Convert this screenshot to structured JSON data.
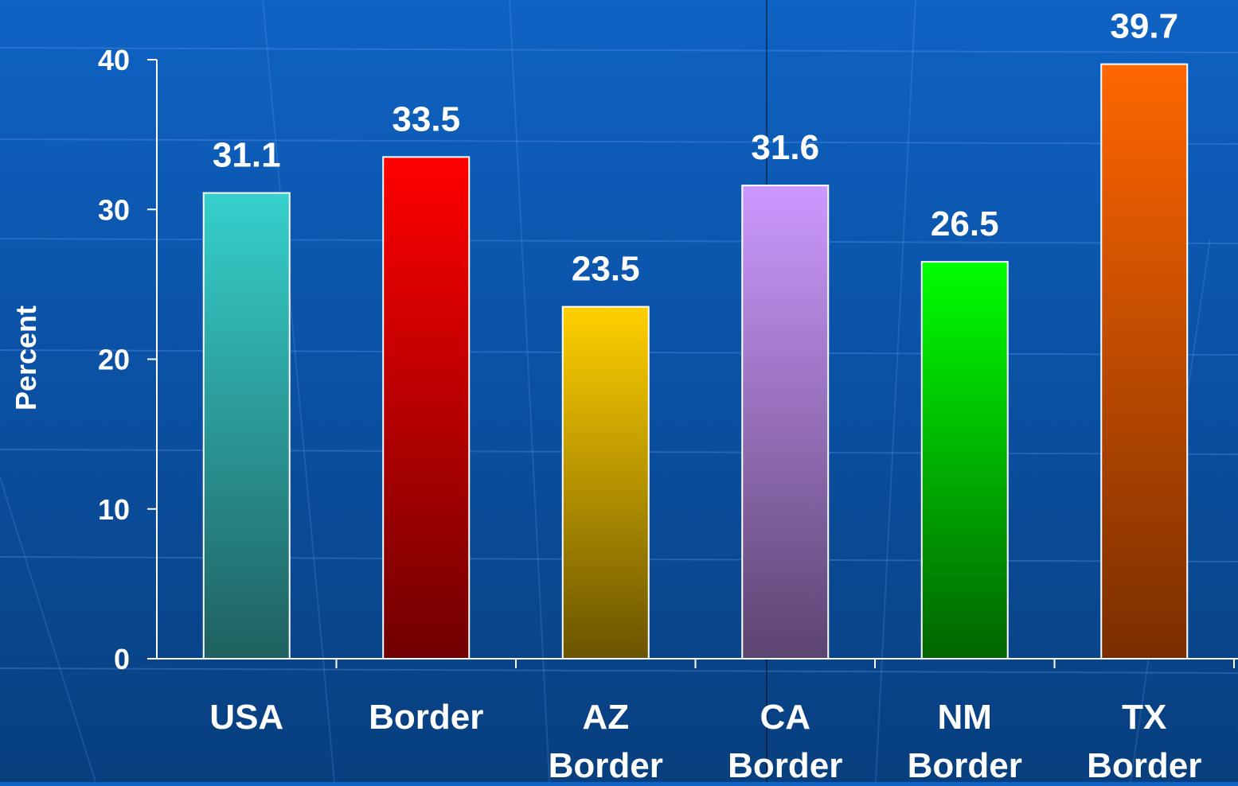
{
  "chart_data": {
    "type": "bar",
    "categories": [
      [
        "USA"
      ],
      [
        "Border"
      ],
      [
        "AZ",
        "Border"
      ],
      [
        "CA",
        "Border"
      ],
      [
        "NM",
        "Border"
      ],
      [
        "TX",
        "Border"
      ]
    ],
    "values": [
      31.1,
      33.5,
      23.5,
      31.6,
      26.5,
      39.7
    ],
    "data_labels": [
      "31.1",
      "33.5",
      "23.5",
      "31.6",
      "26.5",
      "39.7"
    ],
    "bar_colors": [
      [
        "#36d0cc",
        "#1f6060"
      ],
      [
        "#ff0000",
        "#700000"
      ],
      [
        "#ffd000",
        "#6a5400"
      ],
      [
        "#cc99ff",
        "#5c4470"
      ],
      [
        "#00ff00",
        "#006400"
      ],
      [
        "#ff6600",
        "#7a2e00"
      ]
    ],
    "ylabel": "Percent",
    "ylim": [
      0,
      40
    ],
    "yticks": [
      0,
      10,
      20,
      30,
      40
    ],
    "ytick_labels": [
      "0",
      "10",
      "20",
      "30",
      "40"
    ],
    "background": [
      "#0f63c4",
      "#083f7e"
    ]
  }
}
